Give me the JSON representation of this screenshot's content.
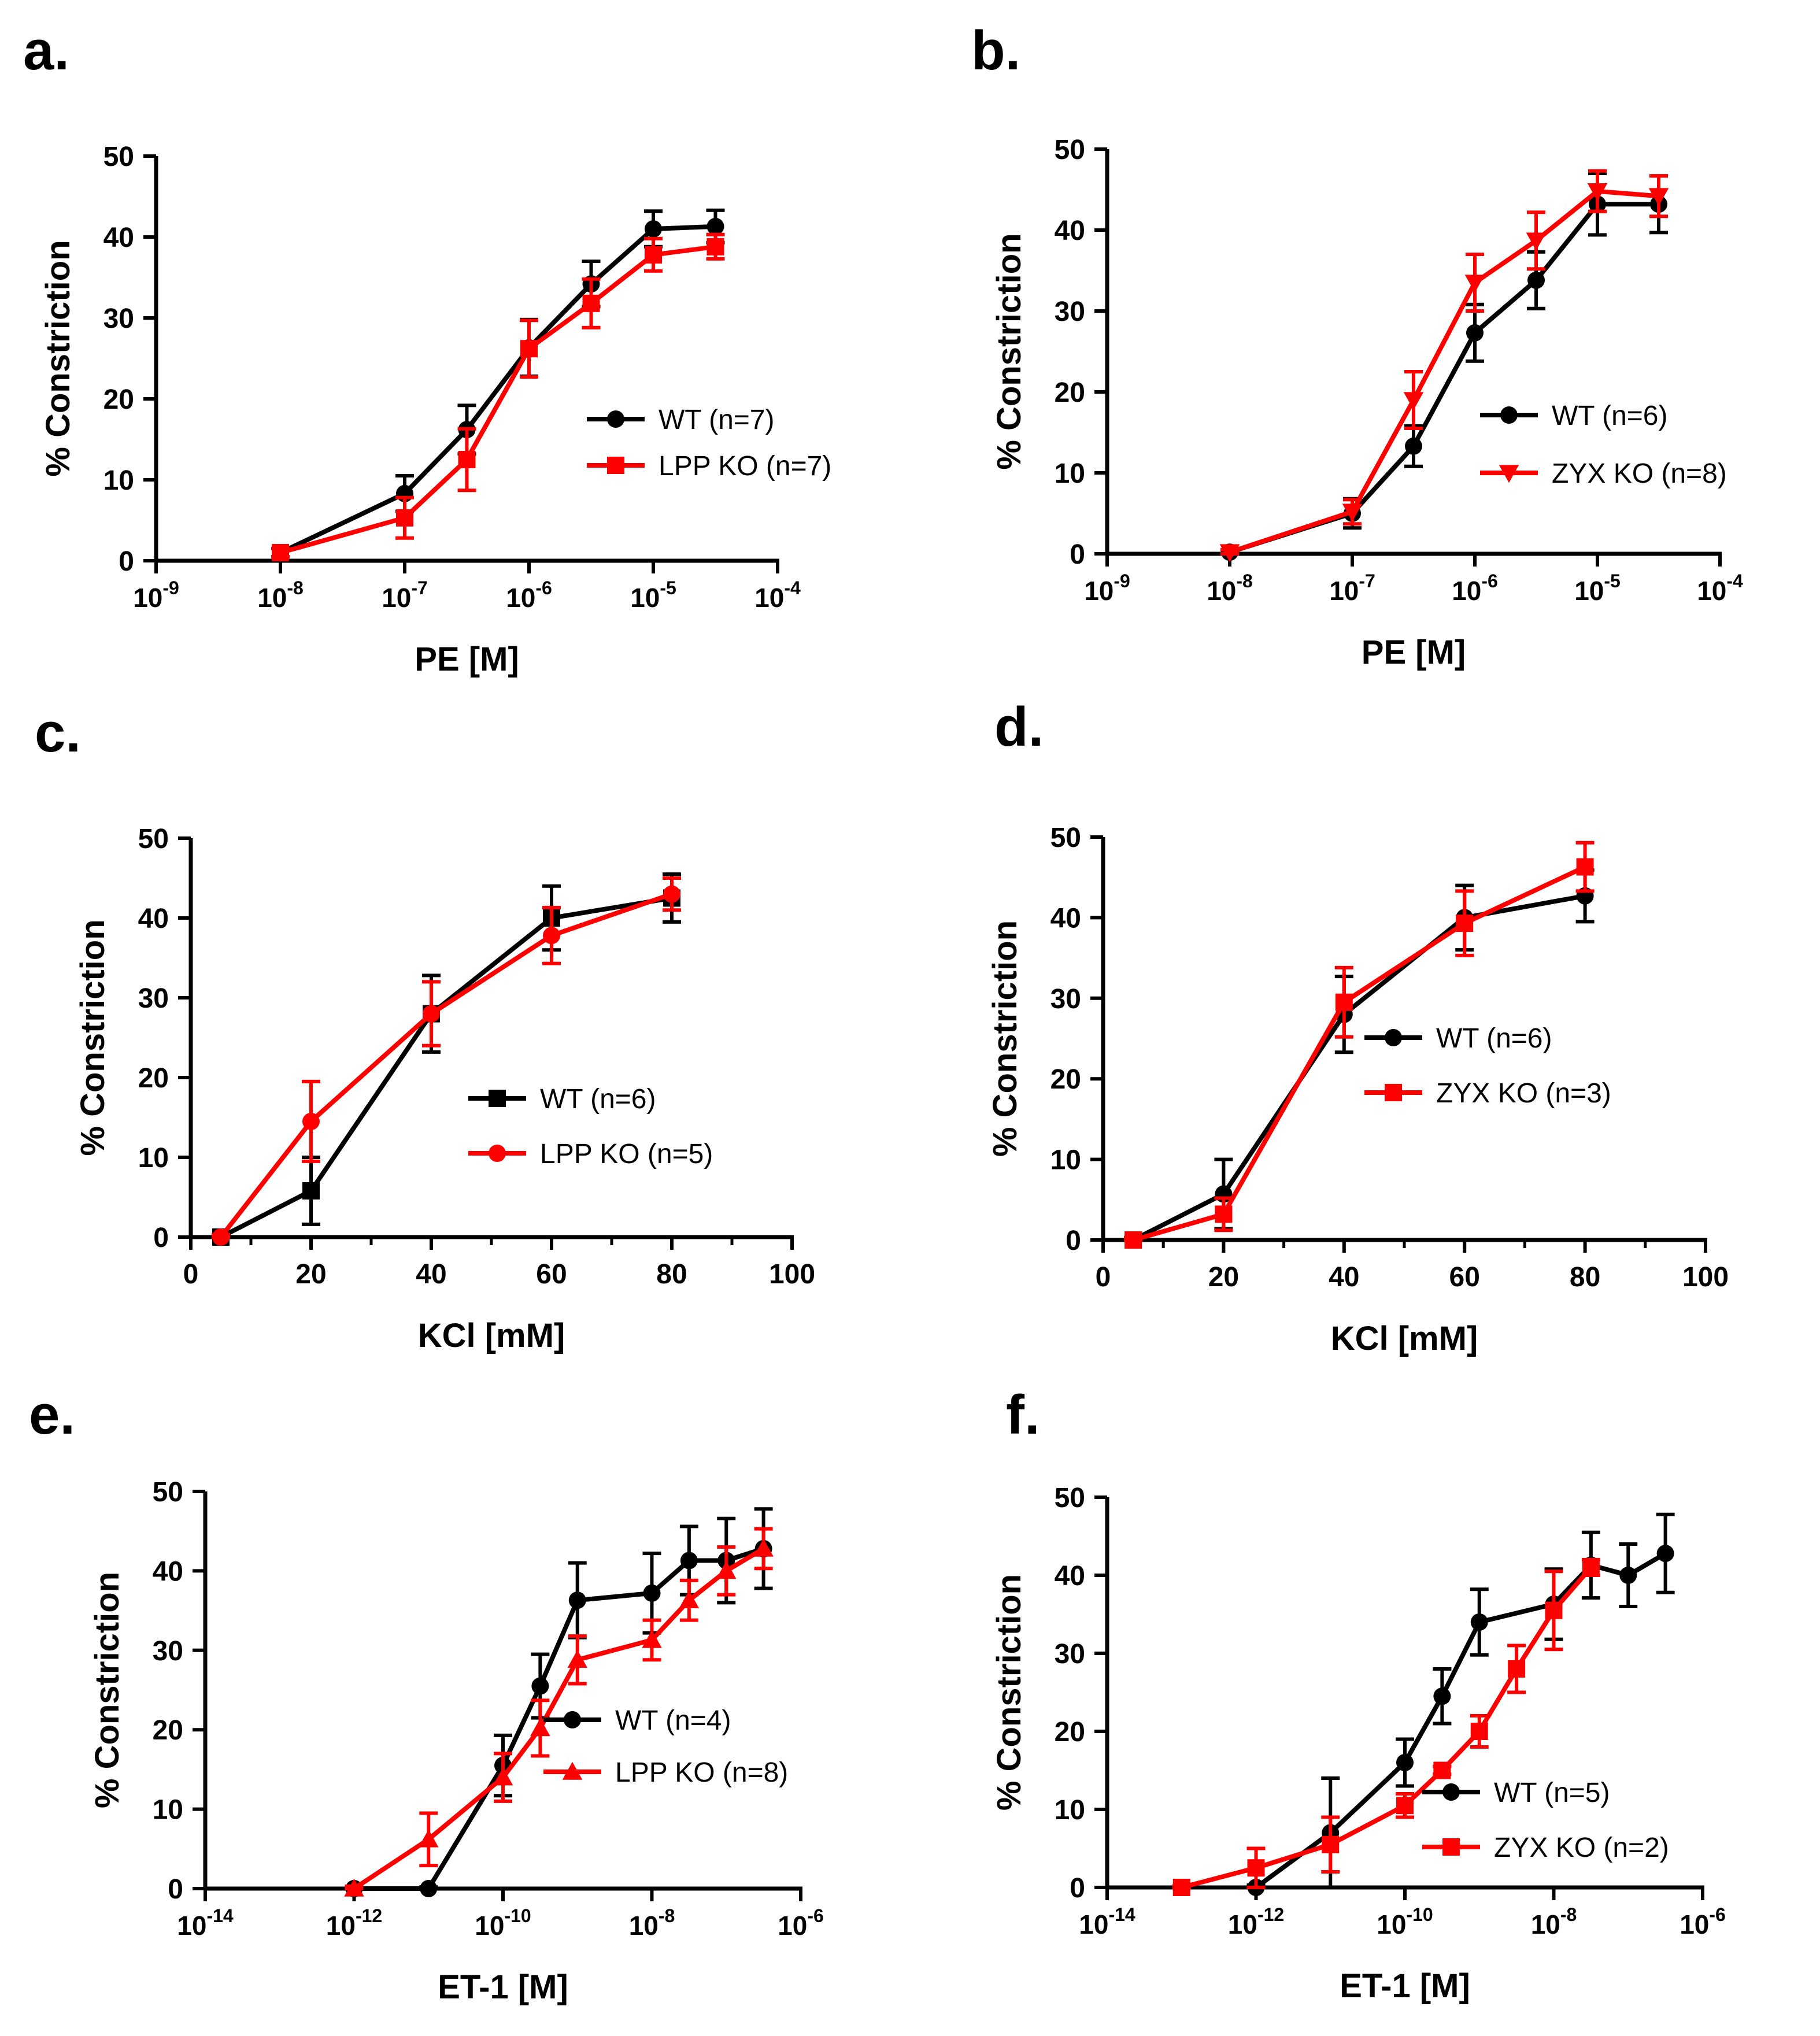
{
  "figure": {
    "panel_letters": [
      "a.",
      "b.",
      "c.",
      "d.",
      "e.",
      "f."
    ]
  },
  "colors": {
    "wt": "#000000",
    "ko": "#ff0000"
  },
  "chart_data": [
    {
      "panel": "a.",
      "type": "line",
      "scale": "log",
      "xlim": [
        -9,
        -4
      ],
      "ylim": [
        0,
        50
      ],
      "yticks": [
        0,
        10,
        20,
        30,
        40,
        50
      ],
      "xticks": [
        -9,
        -8,
        -7,
        -6,
        -5,
        -4
      ],
      "xtick_base": "10",
      "xlabel": "PE [M]",
      "ylabel": "% Constriction",
      "series": [
        {
          "name": "WT  (n=7)",
          "color": "#000000",
          "marker": "circle",
          "x": [
            -8,
            -7,
            -6.5,
            -6,
            -5.5,
            -5,
            -4.5
          ],
          "y": [
            1,
            8.3,
            16.2,
            26.3,
            34.2,
            41,
            41.3
          ],
          "err": [
            0.5,
            2.2,
            3,
            3.5,
            2.8,
            2.2,
            2
          ]
        },
        {
          "name": "LPP KO  (n=7)",
          "color": "#ff0000",
          "marker": "square",
          "x": [
            -8,
            -7,
            -6.5,
            -6,
            -5.5,
            -5,
            -4.5
          ],
          "y": [
            1,
            5.3,
            12.5,
            26.2,
            31.8,
            37.8,
            38.8
          ],
          "err": [
            0.5,
            2.5,
            3.8,
            3.5,
            3,
            2,
            1.5
          ]
        }
      ]
    },
    {
      "panel": "b.",
      "type": "line",
      "scale": "log",
      "xlim": [
        -9,
        -4
      ],
      "ylim": [
        0,
        50
      ],
      "yticks": [
        0,
        10,
        20,
        30,
        40,
        50
      ],
      "xticks": [
        -9,
        -8,
        -7,
        -6,
        -5,
        -4
      ],
      "xtick_base": "10",
      "xlabel": "PE [M]",
      "ylabel": "% Constriction",
      "series": [
        {
          "name": "WT  (n=6)",
          "color": "#000000",
          "marker": "circle",
          "x": [
            -8,
            -7,
            -6.5,
            -6,
            -5.5,
            -5,
            -4.5
          ],
          "y": [
            0.2,
            5,
            13.3,
            27.3,
            33.8,
            43.2,
            43.2
          ],
          "err": [
            0.3,
            1.8,
            2.5,
            3.5,
            3.5,
            3.8,
            3.5
          ]
        },
        {
          "name": "ZYX KO (n=8)",
          "color": "#ff0000",
          "marker": "triangle-down",
          "x": [
            -8,
            -7,
            -6.5,
            -6,
            -5.5,
            -5,
            -4.5
          ],
          "y": [
            0.2,
            5.2,
            19,
            33.5,
            38.7,
            44.8,
            44.2
          ],
          "err": [
            0.3,
            1.5,
            3.5,
            3.5,
            3.5,
            2.5,
            2.5
          ]
        }
      ]
    },
    {
      "panel": "c.",
      "type": "line",
      "scale": "linear",
      "xlim": [
        0,
        100
      ],
      "ylim": [
        0,
        50
      ],
      "yticks": [
        0,
        10,
        20,
        30,
        40,
        50
      ],
      "xticks": [
        0,
        20,
        40,
        60,
        80,
        100
      ],
      "xlabel": "KCl [mM]",
      "ylabel": "% Constriction",
      "series": [
        {
          "name": "WT (n=6)",
          "color": "#000000",
          "marker": "square",
          "x": [
            5,
            20,
            40,
            60,
            80
          ],
          "y": [
            0,
            5.8,
            28,
            40,
            42.5
          ],
          "err": [
            0.3,
            4.2,
            4.8,
            4,
            3
          ]
        },
        {
          "name": "LPP KO (n=5)",
          "color": "#ff0000",
          "marker": "circle",
          "x": [
            5,
            20,
            40,
            60,
            80
          ],
          "y": [
            0,
            14.5,
            28,
            37.8,
            43
          ],
          "err": [
            0.3,
            5,
            4,
            3.5,
            2
          ]
        }
      ]
    },
    {
      "panel": "d.",
      "type": "line",
      "scale": "linear",
      "xlim": [
        0,
        100
      ],
      "ylim": [
        0,
        50
      ],
      "yticks": [
        0,
        10,
        20,
        30,
        40,
        50
      ],
      "xticks": [
        0,
        20,
        40,
        60,
        80,
        100
      ],
      "xlabel": "KCl [mM]",
      "ylabel": "% Constriction",
      "series": [
        {
          "name": "WT (n=6)",
          "color": "#000000",
          "marker": "circle",
          "x": [
            5,
            20,
            40,
            60,
            80
          ],
          "y": [
            0,
            5.7,
            28,
            40,
            42.7
          ],
          "err": [
            0.3,
            4.3,
            4.7,
            4,
            3.2
          ]
        },
        {
          "name": "ZYX KO (n=3)",
          "color": "#ff0000",
          "marker": "square",
          "x": [
            5,
            20,
            40,
            60,
            80
          ],
          "y": [
            0,
            3.2,
            29.5,
            39.3,
            46.3
          ],
          "err": [
            0.3,
            2,
            4.3,
            4,
            3
          ]
        }
      ]
    },
    {
      "panel": "e.",
      "type": "line",
      "scale": "log",
      "xlim": [
        -14,
        -6
      ],
      "ylim": [
        0,
        50
      ],
      "yticks": [
        0,
        10,
        20,
        30,
        40,
        50
      ],
      "xticks": [
        -14,
        -12,
        -10,
        -8,
        -6
      ],
      "xtick_base": "10",
      "xlabel": "ET-1 [M]",
      "ylabel": "% Constriction",
      "series": [
        {
          "name": "WT (n=4)",
          "color": "#000000",
          "marker": "circle",
          "x": [
            -12,
            -11,
            -10,
            -9.5,
            -9,
            -8,
            -7.5,
            -7,
            -6.5
          ],
          "y": [
            0,
            0,
            15.5,
            25.5,
            36.3,
            37.2,
            41.3,
            41.3,
            42.8
          ],
          "err": [
            0.2,
            0.2,
            3.8,
            4,
            4.7,
            5,
            4.3,
            5.3,
            5
          ]
        },
        {
          "name": "LPP KO (n=8)",
          "color": "#ff0000",
          "marker": "triangle",
          "x": [
            -12,
            -11,
            -10,
            -9.5,
            -9,
            -8,
            -7.5,
            -7,
            -6.5
          ],
          "y": [
            0,
            6.2,
            14,
            20.2,
            28.8,
            31.3,
            36.3,
            40,
            42.8
          ],
          "err": [
            0.3,
            3.3,
            3,
            3.5,
            3,
            2.5,
            2.5,
            3,
            2.5
          ]
        }
      ]
    },
    {
      "panel": "f.",
      "type": "line",
      "scale": "log",
      "xlim": [
        -14,
        -6
      ],
      "ylim": [
        0,
        50
      ],
      "yticks": [
        0,
        10,
        20,
        30,
        40,
        50
      ],
      "xticks": [
        -14,
        -12,
        -10,
        -8,
        -6
      ],
      "xtick_base": "10",
      "xlabel": "ET-1 [M]",
      "ylabel": "% Constriction",
      "dotted_zero": true,
      "series": [
        {
          "name": "WT (n=5)",
          "color": "#000000",
          "marker": "circle",
          "x": [
            -12,
            -11,
            -10,
            -9.5,
            -9,
            -8,
            -7.5,
            -7,
            -6.5
          ],
          "y": [
            0,
            7,
            16,
            24.5,
            34,
            36.3,
            41.3,
            40,
            42.8
          ],
          "err": [
            0.3,
            7,
            3,
            3.5,
            4.2,
            4.5,
            4.2,
            4,
            5
          ]
        },
        {
          "name": "ZYX KO (n=2)",
          "color": "#ff0000",
          "marker": "square",
          "x": [
            -13,
            -12,
            -11,
            -10,
            -9.5,
            -9,
            -8.5,
            -8,
            -7.5
          ],
          "y": [
            0,
            2.5,
            5.5,
            10.5,
            15,
            20,
            28,
            35.5,
            41
          ],
          "err": [
            0.2,
            2.5,
            3.5,
            1.5,
            0.5,
            2,
            3,
            5,
            1
          ]
        }
      ]
    }
  ]
}
